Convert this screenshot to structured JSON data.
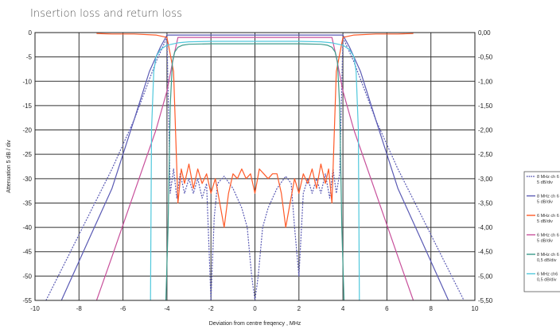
{
  "page": {
    "title": "Insertion loss and return loss"
  },
  "chart_data": {
    "type": "line",
    "xlabel": "Deviation from centre freqency ,  MHz",
    "ylabel": "Attenuation  5 dB / div",
    "xlim": [
      -10,
      10
    ],
    "ylim": [
      -55,
      0
    ],
    "y2lim": [
      -5.5,
      0
    ],
    "x_ticks": [
      "-10",
      "-8",
      "-6",
      "-4",
      "-2",
      "0",
      "2",
      "4",
      "6",
      "8",
      "10"
    ],
    "y_ticks": [
      "0",
      "-5",
      "-10",
      "-15",
      "-20",
      "-25",
      "-30",
      "-35",
      "-40",
      "-45",
      "-50",
      "-55"
    ],
    "y2_ticks": [
      "0,00",
      "-0,50",
      "-1,00",
      "-1,50",
      "-2,00",
      "-2,50",
      "-3,00",
      "-3,50",
      "-4,00",
      "-4,50",
      "-5,00",
      "-5,50"
    ],
    "grid": true,
    "legend_position": "right",
    "series": [
      {
        "name": "8 MHz ch 6",
        "sublabel": "5 dB/div",
        "color": "#5a5ab4",
        "style": "dotted",
        "x": [
          -9.5,
          -8.5,
          -7.5,
          -6.5,
          -5.5,
          -5.0,
          -4.5,
          -4.2,
          -4.0,
          -3.85,
          -3.7,
          -3.55,
          -3.4,
          -3.2,
          -3.0,
          -2.8,
          -2.6,
          -2.4,
          -2.2,
          -2.0,
          -1.85,
          -1.7,
          -1.4,
          -1.0,
          -0.6,
          -0.35,
          -0.15,
          0.0,
          0.15,
          0.35,
          0.6,
          1.0,
          1.4,
          1.65,
          1.8,
          2.0,
          2.2,
          2.4,
          2.6,
          2.8,
          3.0,
          3.2,
          3.4,
          3.55,
          3.7,
          3.85,
          4.0,
          4.2,
          4.5,
          5.0,
          5.5,
          6.5,
          7.5,
          8.5,
          9.5
        ],
        "y": [
          -55,
          -46,
          -37,
          -28,
          -18,
          -12,
          -6,
          -3,
          -1,
          -33,
          -28,
          -34,
          -29,
          -33,
          -30,
          -33,
          -30,
          -34,
          -31,
          -55,
          -38,
          -31,
          -29.5,
          -32,
          -36,
          -40,
          -50,
          -55,
          -50,
          -40,
          -36,
          -32,
          -29.5,
          -31,
          -40,
          -50,
          -33,
          -30,
          -33,
          -30,
          -33,
          -29,
          -34,
          -28,
          -33,
          -29,
          -1,
          -3,
          -6,
          -12,
          -18,
          -28,
          -37,
          -46,
          -55
        ]
      },
      {
        "name": "8 MHz ch 6",
        "sublabel": "5 dB/div",
        "color": "#5a5ab4",
        "style": "solid",
        "x": [
          -8.8,
          -7.5,
          -6.5,
          -5.5,
          -4.8,
          -4.3,
          -4.0,
          4.0,
          4.3,
          4.8,
          5.5,
          6.5,
          7.5,
          8.8
        ],
        "y": [
          -55,
          -42,
          -32,
          -18,
          -8,
          -3,
          -0.5,
          -0.5,
          -3,
          -8,
          -18,
          -32,
          -42,
          -55
        ]
      },
      {
        "name": "6 MHz ch 6",
        "sublabel": "5 dB/div",
        "color": "#ff5a28",
        "style": "solid",
        "x": [
          -7.2,
          -6.5,
          -5.5,
          -4.5,
          -4.0,
          -3.7,
          -3.5,
          -3.35,
          -3.2,
          -3.0,
          -2.8,
          -2.6,
          -2.4,
          -2.2,
          -2.0,
          -1.8,
          -1.6,
          -1.4,
          -1.2,
          -1.0,
          -0.8,
          -0.6,
          -0.4,
          -0.2,
          0.0,
          0.2,
          0.4,
          0.6,
          0.8,
          1.0,
          1.2,
          1.4,
          1.6,
          1.8,
          2.0,
          2.2,
          2.4,
          2.6,
          2.8,
          3.0,
          3.2,
          3.35,
          3.5,
          3.7,
          4.0,
          4.5,
          5.5,
          6.5,
          7.2
        ],
        "y": [
          -0.2,
          -0.3,
          -0.3,
          -0.5,
          -1,
          -8,
          -35,
          -28,
          -31,
          -27,
          -32,
          -28,
          -31,
          -29,
          -33,
          -30,
          -35,
          -40,
          -33,
          -29,
          -30,
          -28,
          -30,
          -29,
          -33,
          -28,
          -29,
          -30,
          -29,
          -29,
          -33,
          -40,
          -35,
          -30,
          -33,
          -29,
          -31,
          -28,
          -32,
          -27,
          -31,
          -28,
          -35,
          -8,
          -1,
          -0.5,
          -0.3,
          -0.3,
          -0.2
        ]
      },
      {
        "name": "6 MHz ch 6",
        "sublabel": "5 dB/div",
        "color": "#c8509b",
        "style": "solid",
        "x": [
          -7.2,
          -6.5,
          -5.5,
          -4.5,
          -4.0,
          -3.7,
          -3.5,
          3.5,
          3.7,
          4.0,
          4.5,
          5.5,
          6.5,
          7.2
        ],
        "y": [
          -55,
          -46,
          -33,
          -20,
          -12,
          -5,
          -1,
          -1,
          -5,
          -12,
          -20,
          -33,
          -46,
          -55
        ]
      },
      {
        "name": "8 MHz ch 6",
        "sublabel": "0,5 dB/div",
        "color": "#3c9b8c",
        "style": "solid",
        "x": [
          -4.05,
          -3.95,
          -3.85,
          -3.75,
          -3.65,
          -3.5,
          -3.3,
          -3.0,
          -2.0,
          -1.0,
          0.0,
          1.0,
          2.0,
          3.0,
          3.3,
          3.5,
          3.65,
          3.75,
          3.85,
          3.95,
          4.05
        ],
        "y": [
          -55,
          -40,
          -15,
          -6,
          -4,
          -3,
          -2.6,
          -2.4,
          -2.3,
          -2.3,
          -2.3,
          -2.3,
          -2.3,
          -2.4,
          -2.6,
          -3,
          -4,
          -6,
          -15,
          -40,
          -55
        ]
      },
      {
        "name": "6 MHz ch6",
        "sublabel": "0,5 dB/div",
        "color": "#50c8dc",
        "style": "solid",
        "x": [
          -4.75,
          -4.7,
          -4.6,
          -4.5,
          -4.3,
          -4.0,
          -3.5,
          -3.0,
          -2.0,
          -1.0,
          0.0,
          1.0,
          2.0,
          3.0,
          3.5,
          4.0,
          4.3,
          4.5,
          4.6,
          4.7,
          4.75
        ],
        "y": [
          -55,
          -20,
          -8,
          -5,
          -3.5,
          -2.6,
          -2.1,
          -1.9,
          -1.8,
          -1.8,
          -1.8,
          -1.8,
          -1.8,
          -1.9,
          -2.1,
          -2.6,
          -3.5,
          -5,
          -8,
          -20,
          -55
        ]
      }
    ]
  }
}
